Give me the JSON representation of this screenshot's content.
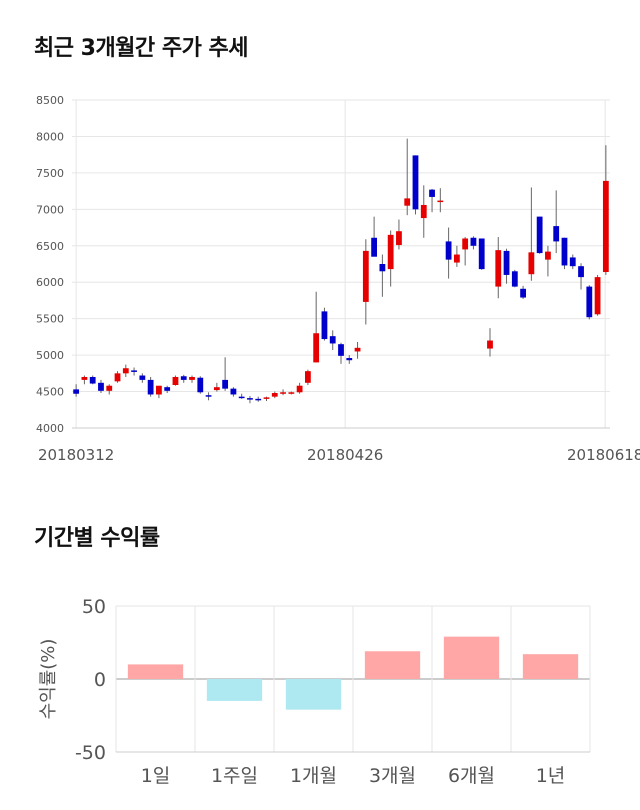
{
  "sections": {
    "price_title": "최근 3개월간 주가 추세",
    "returns_title": "기간별 수익률"
  },
  "colors": {
    "up": "#e60000",
    "down": "#0000cc",
    "pos_bar": "#ffa6a6",
    "neg_bar": "#aee9f2",
    "grid": "#e6e6e6"
  },
  "chart_data": [
    {
      "type": "candlestick",
      "title": "최근 3개월간 주가 추세",
      "ylim": [
        4000,
        8500
      ],
      "yticks": [
        4000,
        4500,
        5000,
        5500,
        6000,
        6500,
        7000,
        7500,
        8000,
        8500
      ],
      "xtick_labels": [
        "20180312",
        "20180426",
        "20180618"
      ],
      "xtick_index": [
        0,
        30,
        59
      ],
      "ohlc": [
        [
          4530,
          4600,
          4430,
          4470
        ],
        [
          4660,
          4720,
          4600,
          4700
        ],
        [
          4700,
          4720,
          4600,
          4610
        ],
        [
          4620,
          4660,
          4480,
          4510
        ],
        [
          4510,
          4600,
          4460,
          4580
        ],
        [
          4640,
          4780,
          4620,
          4750
        ],
        [
          4750,
          4870,
          4700,
          4820
        ],
        [
          4790,
          4830,
          4720,
          4780
        ],
        [
          4720,
          4750,
          4620,
          4660
        ],
        [
          4660,
          4700,
          4430,
          4460
        ],
        [
          4460,
          4560,
          4410,
          4580
        ],
        [
          4560,
          4580,
          4480,
          4510
        ],
        [
          4590,
          4720,
          4580,
          4700
        ],
        [
          4710,
          4730,
          4620,
          4660
        ],
        [
          4660,
          4720,
          4620,
          4700
        ],
        [
          4690,
          4710,
          4470,
          4490
        ],
        [
          4450,
          4490,
          4380,
          4430
        ],
        [
          4520,
          4620,
          4500,
          4560
        ],
        [
          4660,
          4970,
          4510,
          4540
        ],
        [
          4540,
          4560,
          4430,
          4460
        ],
        [
          4430,
          4470,
          4400,
          4410
        ],
        [
          4410,
          4440,
          4340,
          4390
        ],
        [
          4400,
          4430,
          4360,
          4380
        ],
        [
          4400,
          4430,
          4370,
          4420
        ],
        [
          4430,
          4500,
          4410,
          4480
        ],
        [
          4470,
          4530,
          4450,
          4490
        ],
        [
          4480,
          4500,
          4460,
          4490
        ],
        [
          4490,
          4620,
          4470,
          4580
        ],
        [
          4620,
          4800,
          4590,
          4780
        ],
        [
          4900,
          5870,
          4900,
          5300
        ],
        [
          5600,
          5650,
          5200,
          5220
        ],
        [
          5260,
          5340,
          5070,
          5160
        ],
        [
          5150,
          5170,
          4880,
          4990
        ],
        [
          4960,
          5000,
          4880,
          4930
        ],
        [
          5050,
          5180,
          4950,
          5100
        ],
        [
          5730,
          6590,
          5420,
          6430
        ],
        [
          6610,
          6900,
          6380,
          6350
        ],
        [
          6250,
          6380,
          5800,
          6150
        ],
        [
          6180,
          6710,
          5940,
          6650
        ],
        [
          6510,
          6860,
          6450,
          6700
        ],
        [
          7050,
          7970,
          6920,
          7150
        ],
        [
          7740,
          7740,
          6930,
          7000
        ],
        [
          6880,
          7330,
          6610,
          7060
        ],
        [
          7270,
          7280,
          6960,
          7170
        ],
        [
          7120,
          7290,
          6960,
          7120
        ],
        [
          6560,
          6750,
          6050,
          6310
        ],
        [
          6270,
          6500,
          6210,
          6380
        ],
        [
          6450,
          6620,
          6230,
          6600
        ],
        [
          6610,
          6630,
          6450,
          6500
        ],
        [
          6600,
          6600,
          6170,
          6180
        ],
        [
          5090,
          5370,
          4980,
          5200
        ],
        [
          5940,
          6620,
          5780,
          6440
        ],
        [
          6430,
          6460,
          5980,
          6100
        ],
        [
          6150,
          6170,
          5930,
          5940
        ],
        [
          5910,
          5950,
          5770,
          5790
        ],
        [
          6110,
          7300,
          6020,
          6410
        ],
        [
          6900,
          6900,
          6390,
          6400
        ],
        [
          6310,
          6500,
          6080,
          6420
        ],
        [
          6770,
          7260,
          6400,
          6560
        ],
        [
          6610,
          6610,
          6180,
          6230
        ]
      ],
      "last_candles_extra": [
        [
          6340,
          6380,
          6180,
          6220
        ],
        [
          6220,
          6260,
          5900,
          6070
        ],
        [
          5940,
          5960,
          5490,
          5520
        ],
        [
          5560,
          6100,
          5540,
          6070
        ],
        [
          6140,
          7880,
          6100,
          7390
        ]
      ]
    },
    {
      "type": "bar",
      "title": "기간별 수익률",
      "ylabel": "수익률(%)",
      "ylim": [
        -50,
        50
      ],
      "yticks": [
        50,
        0,
        -50
      ],
      "categories": [
        "1일",
        "1주일",
        "1개월",
        "3개월",
        "6개월",
        "1년"
      ],
      "values": [
        10,
        -15,
        -21,
        19,
        29,
        17
      ]
    }
  ]
}
